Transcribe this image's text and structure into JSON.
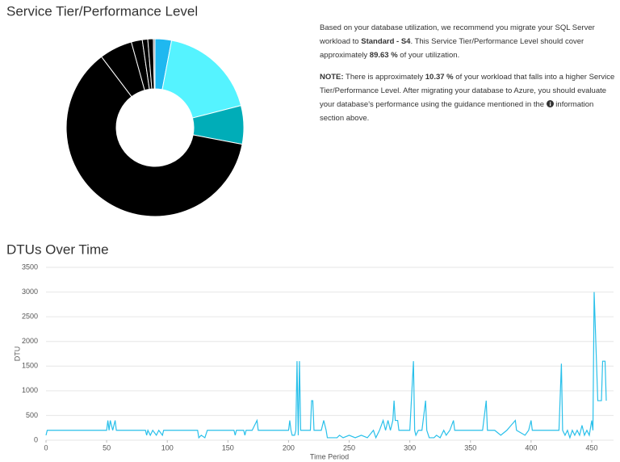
{
  "chart_data": [
    {
      "type": "pie",
      "title": "Service Tier/Performance Level",
      "categories": [
        null,
        null,
        null,
        null,
        null,
        null,
        null,
        null,
        null
      ],
      "values": [
        3,
        18,
        7,
        61.7,
        6,
        2,
        1,
        1,
        0.3
      ],
      "colors": [
        "#1fb8f0",
        "#55f3ff",
        "#00adb8",
        "#000000",
        "#000000",
        "#000000",
        "#000000",
        "#000000",
        "#8a8a8a"
      ],
      "donut": true
    },
    {
      "type": "line",
      "title": "DTUs Over Time",
      "x_label": "Time Period",
      "y_label": "DTU",
      "x": [
        0,
        1,
        50,
        51,
        52,
        53,
        55,
        57,
        58,
        82,
        83,
        84,
        86,
        88,
        91,
        93,
        96,
        97,
        125,
        126,
        128,
        131,
        133,
        155,
        156,
        157,
        163,
        164,
        165,
        170,
        174,
        175,
        200,
        201,
        202,
        203,
        205,
        206,
        207,
        208,
        209,
        210,
        218,
        219,
        220,
        221,
        227,
        229,
        231,
        232,
        240,
        242,
        245,
        250,
        255,
        260,
        265,
        270,
        272,
        275,
        278,
        280,
        282,
        284,
        286,
        287,
        288,
        290,
        291,
        300,
        303,
        304,
        305,
        307,
        310,
        313,
        314,
        316,
        320,
        322,
        325,
        328,
        330,
        333,
        336,
        337,
        350,
        360,
        363,
        364,
        370,
        375,
        380,
        387,
        388,
        395,
        398,
        400,
        401,
        410,
        423,
        425,
        426,
        428,
        430,
        432,
        434,
        436,
        438,
        440,
        442,
        444,
        446,
        448,
        450,
        451,
        452,
        455,
        458,
        459,
        461,
        462
      ],
      "values": [
        100,
        200,
        200,
        400,
        200,
        400,
        200,
        400,
        200,
        200,
        100,
        200,
        100,
        200,
        100,
        200,
        100,
        200,
        200,
        50,
        100,
        50,
        200,
        200,
        100,
        200,
        200,
        100,
        200,
        200,
        400,
        200,
        200,
        400,
        200,
        100,
        100,
        200,
        1600,
        100,
        1600,
        200,
        200,
        800,
        800,
        200,
        200,
        400,
        200,
        50,
        50,
        100,
        50,
        100,
        50,
        100,
        50,
        200,
        50,
        200,
        400,
        200,
        400,
        200,
        400,
        800,
        400,
        400,
        200,
        200,
        1600,
        200,
        100,
        200,
        200,
        800,
        200,
        50,
        50,
        100,
        50,
        200,
        100,
        200,
        400,
        200,
        200,
        200,
        800,
        200,
        200,
        100,
        200,
        400,
        200,
        100,
        200,
        400,
        200,
        200,
        200,
        1550,
        200,
        100,
        200,
        50,
        200,
        100,
        200,
        100,
        300,
        100,
        200,
        100,
        400,
        200,
        3000,
        800,
        800,
        1600,
        1600,
        800
      ],
      "color": "#29c0ea",
      "xlim": [
        0,
        468
      ],
      "ylim": [
        0,
        3500
      ],
      "xticks": [
        0,
        50,
        100,
        150,
        200,
        250,
        300,
        350,
        400,
        450
      ],
      "yticks": [
        0,
        500,
        1000,
        1500,
        2000,
        2500,
        3000,
        3500
      ],
      "grid": true
    }
  ],
  "recommendation": {
    "p1": [
      "Based on your database utilization, we recommend you migrate your SQL Server workload to ",
      "Standard - S4",
      ". This Service Tier/Performance Level should cover approximately ",
      "89.63 %",
      " of your utilization."
    ],
    "p2": [
      "NOTE:",
      " There is approximately ",
      "10.37 %",
      " of your workload that falls into a higher Service Tier/Performance Level. After migrating your database to Azure, you should evaluate your database's performance using the guidance mentioned in the ",
      " information section above."
    ]
  }
}
